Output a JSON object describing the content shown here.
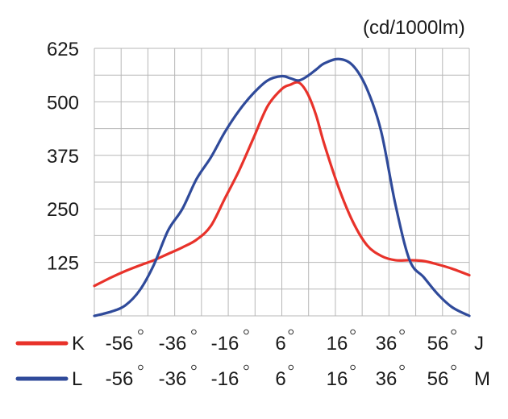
{
  "chart_data": {
    "type": "line",
    "unit_label": "(cd/1000lm)",
    "yticks": [
      "625",
      "500",
      "375",
      "250",
      "125"
    ],
    "ylim": [
      0,
      625
    ],
    "xlim": [
      -66,
      66
    ],
    "x_tick_values": [
      -56,
      -36,
      -16,
      6,
      16,
      36,
      56
    ],
    "grid": true,
    "rows": [
      {
        "name": "K",
        "ticks": [
          "-56",
          "-36",
          "-16",
          "6",
          "16",
          "36",
          "56"
        ],
        "end_label": "J",
        "color": "#e8322a"
      },
      {
        "name": "L",
        "ticks": [
          "-56",
          "-36",
          "-16",
          "6",
          "16",
          "36",
          "56"
        ],
        "end_label": "M",
        "color": "#2f4a9a"
      }
    ],
    "series": [
      {
        "name": "K",
        "color": "#e8322a",
        "x": [
          -66,
          -60,
          -55,
          -50,
          -45,
          -40,
          -35,
          -30,
          -25,
          -20,
          -15,
          -10,
          -5,
          0,
          3,
          6,
          9,
          12,
          15,
          20,
          25,
          30,
          35,
          40,
          45,
          50,
          55,
          60,
          66
        ],
        "y": [
          70,
          90,
          105,
          118,
          130,
          145,
          160,
          178,
          210,
          275,
          340,
          415,
          490,
          530,
          540,
          545,
          520,
          470,
          400,
          300,
          220,
          165,
          140,
          130,
          130,
          128,
          120,
          110,
          95
        ]
      },
      {
        "name": "L",
        "color": "#2f4a9a",
        "x": [
          -66,
          -60,
          -55,
          -50,
          -45,
          -40,
          -35,
          -30,
          -25,
          -20,
          -15,
          -10,
          -5,
          0,
          3,
          6,
          9,
          12,
          15,
          20,
          25,
          30,
          35,
          40,
          45,
          50,
          55,
          60,
          66
        ],
        "y": [
          0,
          10,
          25,
          60,
          120,
          200,
          250,
          320,
          370,
          430,
          480,
          520,
          550,
          560,
          555,
          550,
          560,
          575,
          590,
          600,
          585,
          530,
          430,
          260,
          130,
          90,
          50,
          20,
          0
        ]
      }
    ]
  }
}
